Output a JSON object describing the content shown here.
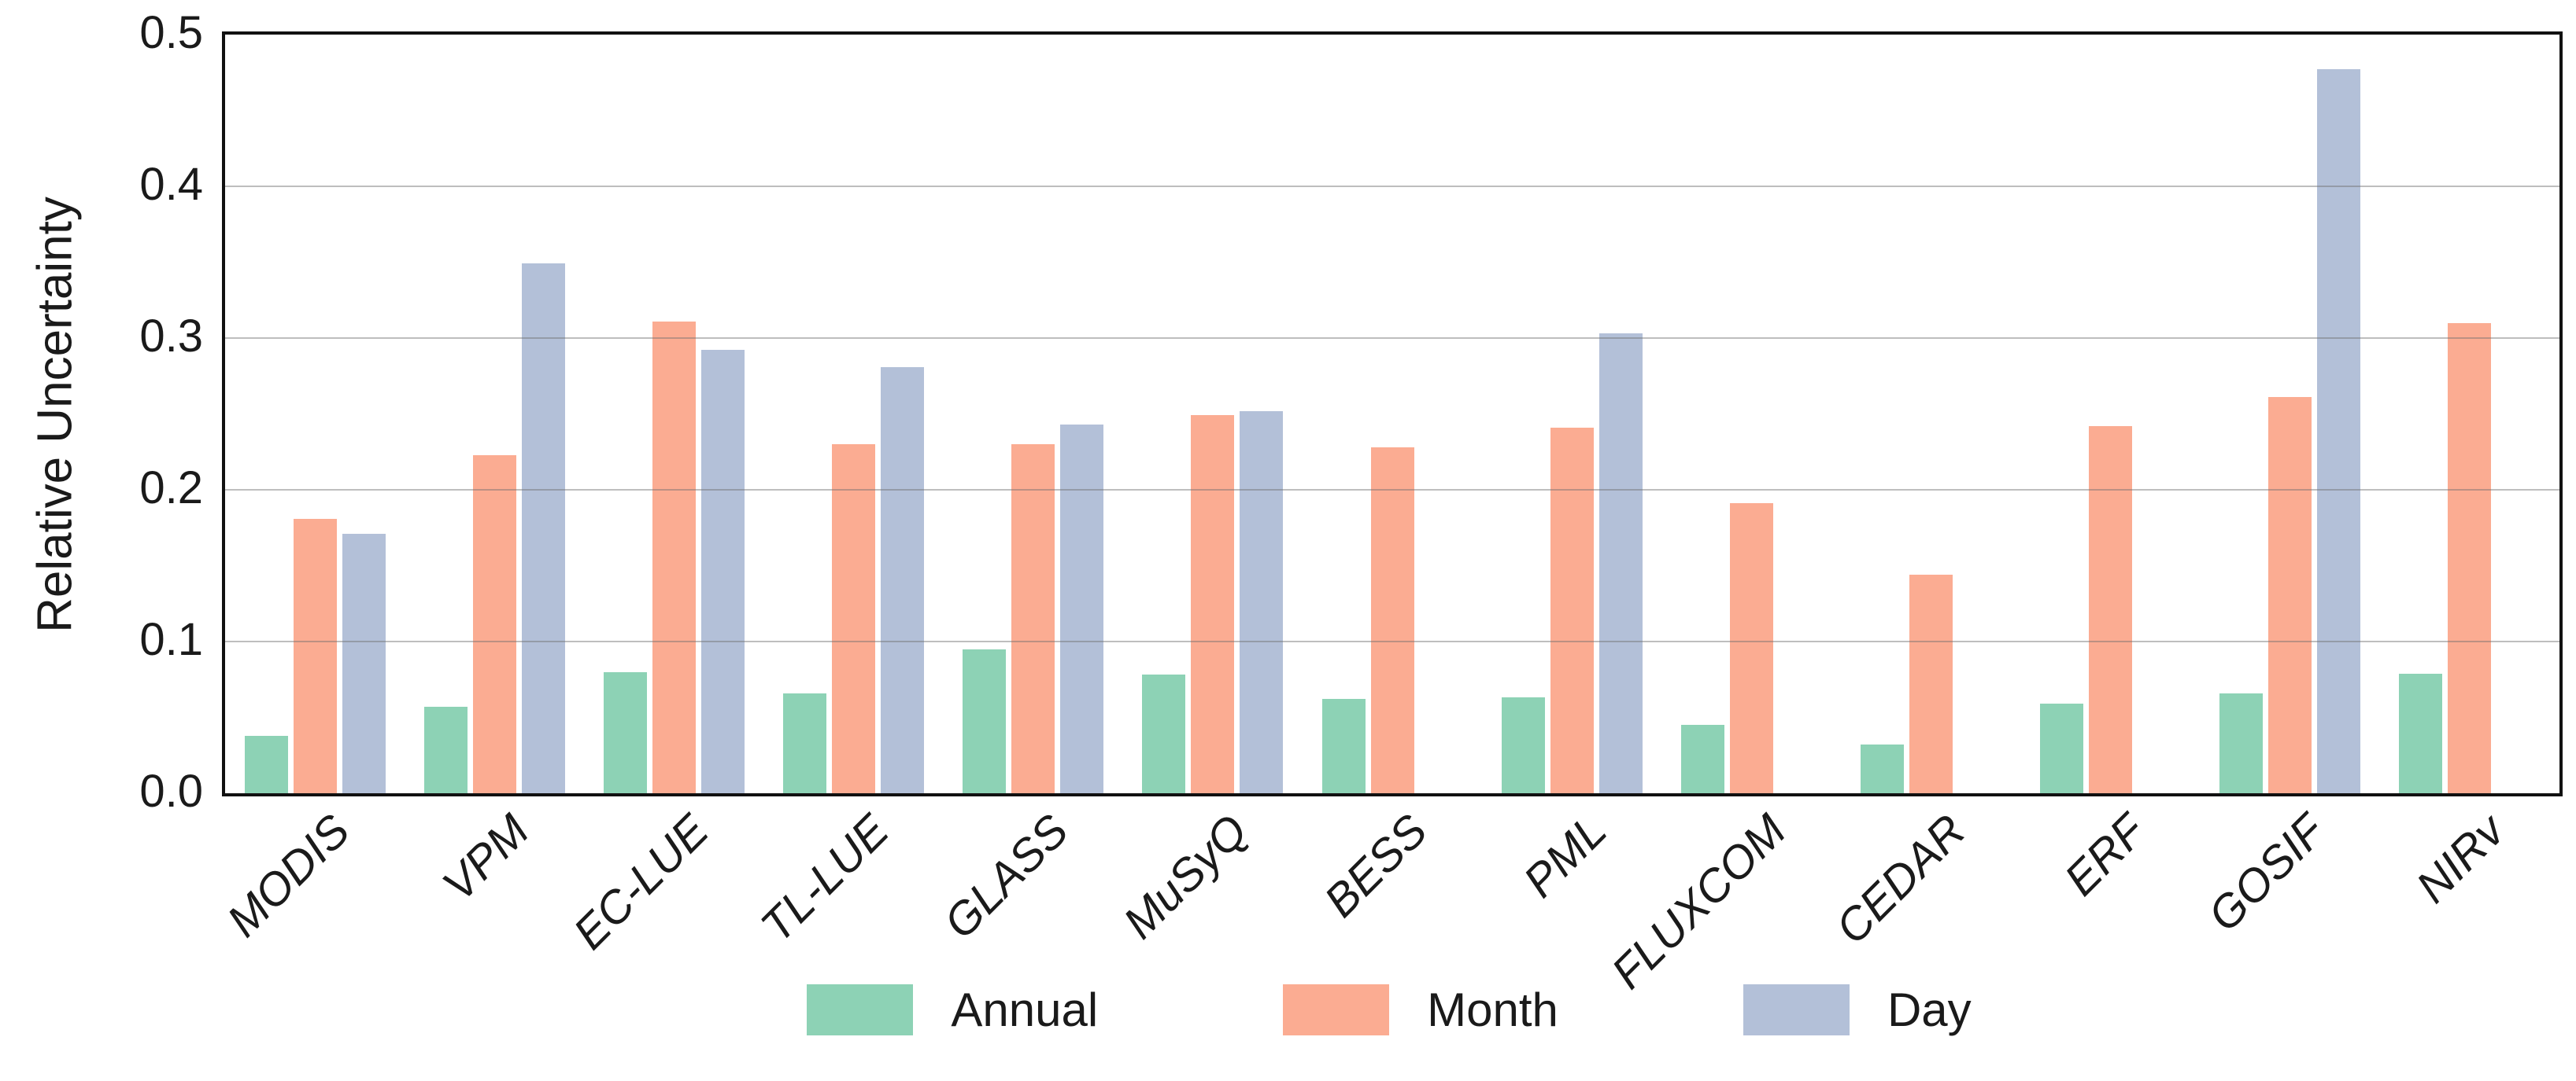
{
  "chart_data": {
    "type": "bar",
    "title": "",
    "xlabel": "",
    "ylabel": "Relative Uncertainty",
    "ylim": [
      0,
      0.5
    ],
    "yticks": [
      0.0,
      0.1,
      0.2,
      0.3,
      0.4,
      0.5
    ],
    "ytick_labels": [
      "0.0",
      "0.1",
      "0.2",
      "0.3",
      "0.4",
      "0.5"
    ],
    "grid": "horizontal",
    "legend_position": "bottom-center",
    "categories": [
      "MODIS",
      "VPM",
      "EC-LUE",
      "TL-LUE",
      "GLASS",
      "MuSyQ",
      "BESS",
      "PML",
      "FLUXCOM",
      "CEDAR",
      "ERF",
      "GOSIF",
      "NIRv"
    ],
    "series": [
      {
        "name": "Annual",
        "color": "#8dd2b5",
        "values": [
          0.038,
          0.057,
          0.08,
          0.066,
          0.095,
          0.078,
          0.062,
          0.063,
          0.045,
          0.032,
          0.059,
          0.066,
          0.079
        ]
      },
      {
        "name": "Month",
        "color": "#fbac92",
        "values": [
          0.181,
          0.223,
          0.311,
          0.23,
          0.23,
          0.249,
          0.228,
          0.241,
          0.191,
          0.144,
          0.242,
          0.261,
          0.31
        ]
      },
      {
        "name": "Day",
        "color": "#b3c0d8",
        "values": [
          0.171,
          0.349,
          0.292,
          0.281,
          0.243,
          0.252,
          null,
          0.303,
          null,
          null,
          null,
          0.477,
          null
        ]
      }
    ]
  },
  "colors": {
    "axis_border": "#111111",
    "gridline": "#6e6e6e",
    "text": "#1a1a1a",
    "background": "#ffffff"
  }
}
